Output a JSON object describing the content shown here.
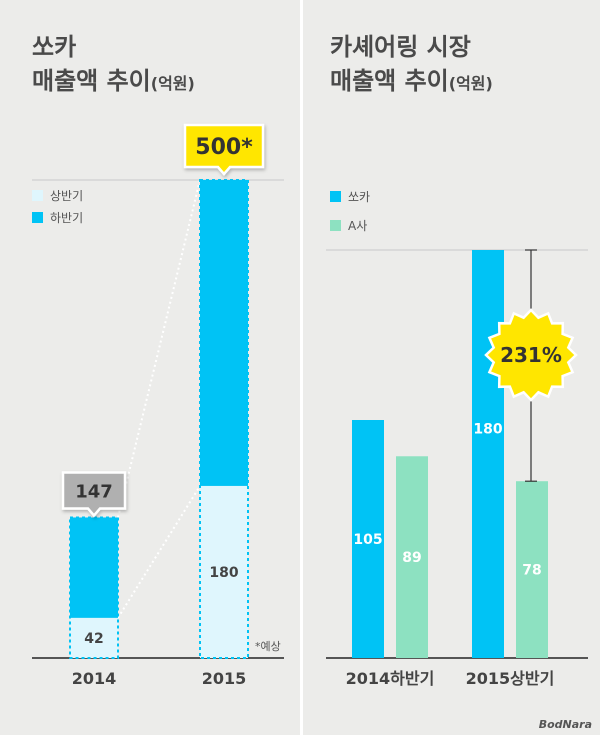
{
  "chart_data": [
    {
      "type": "bar",
      "stacked": true,
      "title_line1": "쏘카",
      "title_line2": "매출액 추이",
      "title_unit": "(억원)",
      "categories": [
        "2014",
        "2015"
      ],
      "series": [
        {
          "name": "상반기",
          "values": [
            42,
            180
          ],
          "color": "#dff6fd"
        },
        {
          "name": "하반기",
          "values": [
            105,
            320
          ],
          "color": "#00c3f5"
        }
      ],
      "totals": [
        "147",
        "500*"
      ],
      "footnote": "*예상",
      "ylim": [
        0,
        500
      ],
      "legend": "top-left"
    },
    {
      "type": "bar",
      "title_line1": "카셰어링 시장",
      "title_line2": "매출액 추이",
      "title_unit": "(억원)",
      "categories": [
        "2014하반기",
        "2015상반기"
      ],
      "series": [
        {
          "name": "쏘카",
          "values": [
            105,
            180
          ],
          "color": "#00c3f5"
        },
        {
          "name": "A사",
          "values": [
            89,
            78
          ],
          "color": "#8de1c1"
        }
      ],
      "annotation": "231%",
      "ylim": [
        0,
        180
      ],
      "legend": "top-left"
    }
  ],
  "watermark": "BodNara",
  "colors": {
    "sky": "#00c3f5",
    "pale": "#dff6fd",
    "mint": "#8de1c1",
    "yellow": "#ffe600",
    "gray_badge": "#b0b0b0"
  }
}
